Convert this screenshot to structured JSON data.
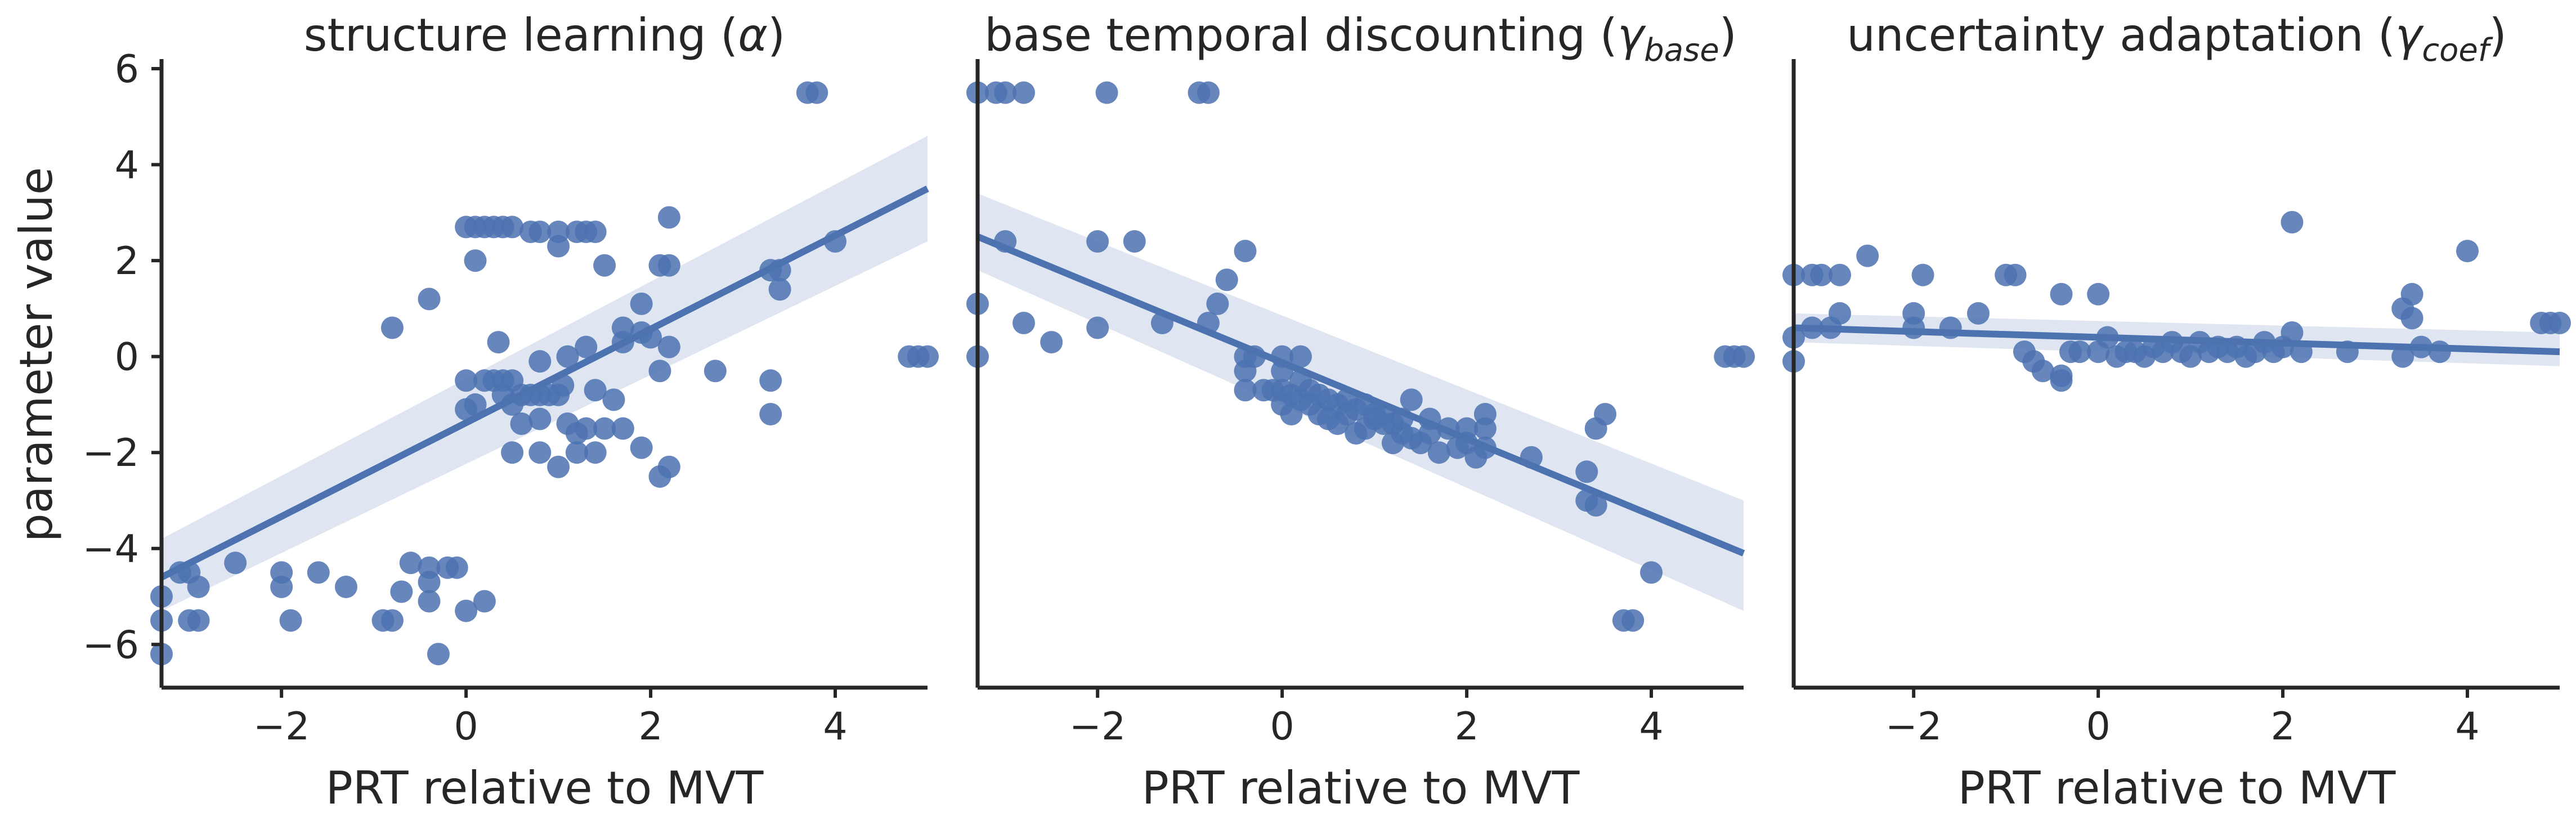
{
  "colors": {
    "points": "#4c72b0",
    "line": "#4c72b0",
    "band": "#dfe6f2",
    "axes": "#262626"
  },
  "figure": {
    "y_axis_label": "parameter value",
    "shared_y_axis": true
  },
  "chart_data": [
    {
      "type": "scatter",
      "title_text": "structure learning (",
      "title_symbol": "α",
      "title_subscript": "",
      "title_close": ")",
      "xlabel": "PRT relative to MVT",
      "ylabel": "parameter value",
      "xlim": [
        -3.3,
        5.0
      ],
      "ylim": [
        -6.9,
        6.2
      ],
      "xticks": [
        "−2",
        "0",
        "2",
        "4"
      ],
      "xtick_values": [
        -2,
        0,
        2,
        4
      ],
      "yticks": [
        "6",
        "4",
        "2",
        "0",
        "−2",
        "−4",
        "−6"
      ],
      "ytick_values": [
        6,
        4,
        2,
        0,
        -2,
        -4,
        -6
      ],
      "grid": false,
      "regression": {
        "x": [
          -3.3,
          5.0
        ],
        "y": [
          -4.6,
          3.5
        ],
        "ci_lower": [
          -5.3,
          2.4
        ],
        "ci_upper": [
          -3.8,
          4.6
        ]
      },
      "points": [
        [
          -3.3,
          -5.0
        ],
        [
          -3.3,
          -5.5
        ],
        [
          -3.3,
          -6.2
        ],
        [
          -3.1,
          -4.5
        ],
        [
          -3.0,
          -5.5
        ],
        [
          -3.0,
          -4.5
        ],
        [
          -2.9,
          -4.8
        ],
        [
          -2.9,
          -5.5
        ],
        [
          -2.5,
          -4.3
        ],
        [
          -2.0,
          -4.5
        ],
        [
          -2.0,
          -4.8
        ],
        [
          -1.9,
          -5.5
        ],
        [
          -1.6,
          -4.5
        ],
        [
          -1.3,
          -4.8
        ],
        [
          -0.9,
          -5.5
        ],
        [
          -0.8,
          -5.5
        ],
        [
          -0.8,
          0.6
        ],
        [
          -0.7,
          -4.9
        ],
        [
          -0.6,
          -4.3
        ],
        [
          -0.4,
          -4.7
        ],
        [
          -0.4,
          -4.4
        ],
        [
          -0.4,
          -5.1
        ],
        [
          -0.4,
          1.2
        ],
        [
          -0.3,
          -6.2
        ],
        [
          -0.2,
          -4.4
        ],
        [
          -0.1,
          -4.4
        ],
        [
          0.0,
          -5.3
        ],
        [
          0.0,
          2.7
        ],
        [
          0.0,
          -0.5
        ],
        [
          0.0,
          -1.1
        ],
        [
          0.1,
          2.7
        ],
        [
          0.1,
          2.0
        ],
        [
          0.1,
          -1.0
        ],
        [
          0.2,
          -5.1
        ],
        [
          0.2,
          2.7
        ],
        [
          0.2,
          -0.5
        ],
        [
          0.3,
          2.7
        ],
        [
          0.3,
          -0.5
        ],
        [
          0.35,
          0.3
        ],
        [
          0.4,
          2.7
        ],
        [
          0.4,
          -0.5
        ],
        [
          0.4,
          -0.8
        ],
        [
          0.5,
          2.7
        ],
        [
          0.5,
          -0.5
        ],
        [
          0.5,
          -1.0
        ],
        [
          0.5,
          -2.0
        ],
        [
          0.6,
          -0.8
        ],
        [
          0.6,
          -1.4
        ],
        [
          0.7,
          2.6
        ],
        [
          0.7,
          -0.8
        ],
        [
          0.8,
          2.6
        ],
        [
          0.8,
          -0.8
        ],
        [
          0.8,
          -1.3
        ],
        [
          0.8,
          -2.0
        ],
        [
          0.8,
          -0.1
        ],
        [
          0.9,
          -0.8
        ],
        [
          1.0,
          2.6
        ],
        [
          1.0,
          2.3
        ],
        [
          1.0,
          -2.3
        ],
        [
          1.0,
          -0.8
        ],
        [
          1.05,
          -0.6
        ],
        [
          1.1,
          0.0
        ],
        [
          1.1,
          -1.4
        ],
        [
          1.2,
          2.6
        ],
        [
          1.2,
          -1.6
        ],
        [
          1.2,
          -2.0
        ],
        [
          1.3,
          2.6
        ],
        [
          1.3,
          0.2
        ],
        [
          1.3,
          -1.5
        ],
        [
          1.4,
          2.6
        ],
        [
          1.4,
          -0.7
        ],
        [
          1.4,
          -2.0
        ],
        [
          1.5,
          1.9
        ],
        [
          1.5,
          -1.5
        ],
        [
          1.6,
          -0.9
        ],
        [
          1.7,
          0.6
        ],
        [
          1.7,
          0.3
        ],
        [
          1.7,
          -1.5
        ],
        [
          1.9,
          1.1
        ],
        [
          1.9,
          0.5
        ],
        [
          1.9,
          -1.9
        ],
        [
          2.0,
          0.4
        ],
        [
          2.1,
          1.9
        ],
        [
          2.1,
          -0.3
        ],
        [
          2.1,
          -2.5
        ],
        [
          2.2,
          1.9
        ],
        [
          2.2,
          -2.3
        ],
        [
          2.2,
          0.2
        ],
        [
          2.2,
          2.9
        ],
        [
          2.7,
          -0.3
        ],
        [
          3.3,
          -1.2
        ],
        [
          3.3,
          -0.5
        ],
        [
          3.3,
          1.8
        ],
        [
          3.4,
          1.8
        ],
        [
          3.4,
          1.4
        ],
        [
          3.7,
          5.5
        ],
        [
          3.8,
          5.5
        ],
        [
          4.0,
          2.4
        ],
        [
          4.8,
          0.0
        ],
        [
          4.9,
          0.0
        ],
        [
          5.0,
          0.0
        ]
      ]
    },
    {
      "type": "scatter",
      "title_text": "base temporal discounting (",
      "title_symbol": "γ",
      "title_subscript": "base",
      "title_close": ")",
      "xlabel": "PRT relative to MVT",
      "ylabel": "",
      "xlim": [
        -3.3,
        5.0
      ],
      "ylim": [
        -6.9,
        6.2
      ],
      "xticks": [
        "−2",
        "0",
        "2",
        "4"
      ],
      "xtick_values": [
        -2,
        0,
        2,
        4
      ],
      "yticks": [],
      "ytick_values": [],
      "grid": false,
      "regression": {
        "x": [
          -3.3,
          5.0
        ],
        "y": [
          2.5,
          -4.1
        ],
        "ci_lower": [
          1.8,
          -5.3
        ],
        "ci_upper": [
          3.4,
          -3.0
        ]
      },
      "points": [
        [
          -3.3,
          5.5
        ],
        [
          -3.3,
          1.1
        ],
        [
          -3.3,
          0.0
        ],
        [
          -3.1,
          5.5
        ],
        [
          -3.0,
          5.5
        ],
        [
          -3.0,
          2.4
        ],
        [
          -2.8,
          5.5
        ],
        [
          -2.8,
          0.7
        ],
        [
          -2.5,
          0.3
        ],
        [
          -2.0,
          2.4
        ],
        [
          -2.0,
          0.6
        ],
        [
          -1.9,
          5.5
        ],
        [
          -1.6,
          2.4
        ],
        [
          -1.3,
          0.7
        ],
        [
          -0.9,
          5.5
        ],
        [
          -0.8,
          5.5
        ],
        [
          -0.8,
          0.7
        ],
        [
          -0.7,
          1.1
        ],
        [
          -0.6,
          1.6
        ],
        [
          -0.4,
          2.2
        ],
        [
          -0.4,
          0.0
        ],
        [
          -0.4,
          -0.3
        ],
        [
          -0.4,
          -0.7
        ],
        [
          -0.3,
          0.0
        ],
        [
          -0.2,
          -0.7
        ],
        [
          -0.1,
          -0.7
        ],
        [
          0.0,
          0.0
        ],
        [
          0.0,
          -0.3
        ],
        [
          0.0,
          -0.7
        ],
        [
          0.0,
          -1.0
        ],
        [
          0.1,
          -0.8
        ],
        [
          0.1,
          -1.2
        ],
        [
          0.2,
          0.0
        ],
        [
          0.2,
          -0.5
        ],
        [
          0.2,
          -0.9
        ],
        [
          0.3,
          -0.7
        ],
        [
          0.3,
          -1.0
        ],
        [
          0.4,
          -0.8
        ],
        [
          0.4,
          -1.2
        ],
        [
          0.5,
          -0.9
        ],
        [
          0.5,
          -1.3
        ],
        [
          0.6,
          -1.0
        ],
        [
          0.6,
          -1.4
        ],
        [
          0.7,
          -0.9
        ],
        [
          0.7,
          -1.2
        ],
        [
          0.8,
          -1.1
        ],
        [
          0.8,
          -1.6
        ],
        [
          0.9,
          -1.0
        ],
        [
          0.9,
          -1.5
        ],
        [
          1.0,
          -1.2
        ],
        [
          1.0,
          -1.3
        ],
        [
          1.1,
          -1.4
        ],
        [
          1.1,
          -1.2
        ],
        [
          1.2,
          -1.4
        ],
        [
          1.2,
          -1.8
        ],
        [
          1.3,
          -1.3
        ],
        [
          1.3,
          -1.6
        ],
        [
          1.4,
          -0.9
        ],
        [
          1.4,
          -1.7
        ],
        [
          1.5,
          -1.8
        ],
        [
          1.6,
          -1.3
        ],
        [
          1.6,
          -1.6
        ],
        [
          1.7,
          -2.0
        ],
        [
          1.8,
          -1.5
        ],
        [
          1.9,
          -1.9
        ],
        [
          2.0,
          -1.5
        ],
        [
          2.0,
          -1.8
        ],
        [
          2.1,
          -2.1
        ],
        [
          2.2,
          -1.2
        ],
        [
          2.2,
          -1.5
        ],
        [
          2.2,
          -1.9
        ],
        [
          2.7,
          -2.1
        ],
        [
          3.3,
          -2.4
        ],
        [
          3.3,
          -3.0
        ],
        [
          3.4,
          -3.1
        ],
        [
          3.4,
          -1.5
        ],
        [
          3.5,
          -1.2
        ],
        [
          3.7,
          -5.5
        ],
        [
          3.8,
          -5.5
        ],
        [
          4.0,
          -4.5
        ],
        [
          4.8,
          0.0
        ],
        [
          4.9,
          0.0
        ],
        [
          5.0,
          0.0
        ]
      ]
    },
    {
      "type": "scatter",
      "title_text": "uncertainty adaptation (",
      "title_symbol": "γ",
      "title_subscript": "coef",
      "title_close": ")",
      "xlabel": "PRT relative to MVT",
      "ylabel": "",
      "xlim": [
        -3.3,
        5.0
      ],
      "ylim": [
        -6.9,
        6.2
      ],
      "xticks": [
        "−2",
        "0",
        "2",
        "4"
      ],
      "xtick_values": [
        -2,
        0,
        2,
        4
      ],
      "yticks": [],
      "ytick_values": [],
      "grid": false,
      "regression": {
        "x": [
          -3.3,
          5.0
        ],
        "y": [
          0.6,
          0.1
        ],
        "ci_lower": [
          0.3,
          -0.2
        ],
        "ci_upper": [
          0.9,
          0.5
        ]
      },
      "points": [
        [
          -3.3,
          1.7
        ],
        [
          -3.3,
          0.4
        ],
        [
          -3.3,
          -0.1
        ],
        [
          -3.1,
          1.7
        ],
        [
          -3.1,
          0.6
        ],
        [
          -3.0,
          1.7
        ],
        [
          -2.9,
          0.6
        ],
        [
          -2.8,
          1.7
        ],
        [
          -2.8,
          0.9
        ],
        [
          -2.5,
          2.1
        ],
        [
          -2.0,
          0.9
        ],
        [
          -2.0,
          0.6
        ],
        [
          -1.9,
          1.7
        ],
        [
          -1.6,
          0.6
        ],
        [
          -1.3,
          0.9
        ],
        [
          -1.0,
          1.7
        ],
        [
          -0.9,
          1.7
        ],
        [
          -0.8,
          0.1
        ],
        [
          -0.7,
          -0.1
        ],
        [
          -0.6,
          -0.3
        ],
        [
          -0.4,
          1.3
        ],
        [
          -0.4,
          -0.4
        ],
        [
          -0.4,
          -0.5
        ],
        [
          -0.3,
          0.1
        ],
        [
          -0.2,
          0.1
        ],
        [
          0.0,
          1.3
        ],
        [
          0.0,
          0.1
        ],
        [
          0.1,
          0.4
        ],
        [
          0.2,
          0.0
        ],
        [
          0.3,
          0.1
        ],
        [
          0.4,
          0.1
        ],
        [
          0.5,
          0.0
        ],
        [
          0.6,
          0.2
        ],
        [
          0.7,
          0.1
        ],
        [
          0.8,
          0.3
        ],
        [
          0.9,
          0.1
        ],
        [
          1.0,
          0.0
        ],
        [
          1.1,
          0.3
        ],
        [
          1.2,
          0.1
        ],
        [
          1.3,
          0.2
        ],
        [
          1.4,
          0.1
        ],
        [
          1.5,
          0.2
        ],
        [
          1.6,
          0.0
        ],
        [
          1.7,
          0.1
        ],
        [
          1.8,
          0.3
        ],
        [
          1.9,
          0.1
        ],
        [
          2.0,
          0.2
        ],
        [
          2.1,
          2.8
        ],
        [
          2.1,
          0.5
        ],
        [
          2.2,
          0.1
        ],
        [
          2.7,
          0.1
        ],
        [
          3.3,
          0.0
        ],
        [
          3.3,
          1.0
        ],
        [
          3.4,
          1.3
        ],
        [
          3.4,
          0.8
        ],
        [
          3.5,
          0.2
        ],
        [
          3.7,
          0.1
        ],
        [
          4.0,
          2.2
        ],
        [
          4.8,
          0.7
        ],
        [
          4.9,
          0.7
        ],
        [
          5.0,
          0.7
        ]
      ]
    }
  ]
}
